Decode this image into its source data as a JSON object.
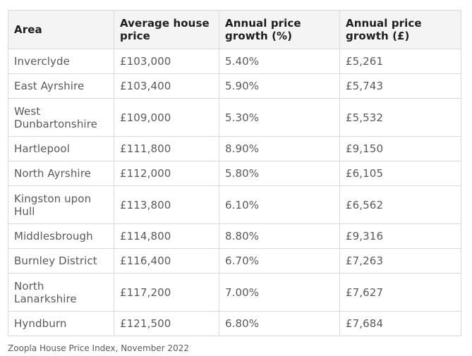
{
  "table": {
    "headers": {
      "area": "Area",
      "avg_price": "Average house price",
      "growth_pct": "Annual price growth (%)",
      "growth_gbp": "Annual price growth (£)"
    },
    "rows": [
      {
        "area": "Inverclyde",
        "avg_price": "£103,000",
        "growth_pct": "5.40%",
        "growth_gbp": "£5,261"
      },
      {
        "area": "East Ayrshire",
        "avg_price": "£103,400",
        "growth_pct": "5.90%",
        "growth_gbp": "£5,743"
      },
      {
        "area": "West Dunbartonshire",
        "avg_price": "£109,000",
        "growth_pct": "5.30%",
        "growth_gbp": "£5,532"
      },
      {
        "area": "Hartlepool",
        "avg_price": "£111,800",
        "growth_pct": "8.90%",
        "growth_gbp": "£9,150"
      },
      {
        "area": "North Ayrshire",
        "avg_price": "£112,000",
        "growth_pct": "5.80%",
        "growth_gbp": "£6,105"
      },
      {
        "area": "Kingston upon Hull",
        "avg_price": "£113,800",
        "growth_pct": "6.10%",
        "growth_gbp": "£6,562"
      },
      {
        "area": "Middlesbrough",
        "avg_price": "£114,800",
        "growth_pct": "8.80%",
        "growth_gbp": "£9,316"
      },
      {
        "area": "Burnley District",
        "avg_price": "£116,400",
        "growth_pct": "6.70%",
        "growth_gbp": "£7,263"
      },
      {
        "area": "North Lanarkshire",
        "avg_price": "£117,200",
        "growth_pct": "7.00%",
        "growth_gbp": "£7,627"
      },
      {
        "area": "Hyndburn",
        "avg_price": "£121,500",
        "growth_pct": "6.80%",
        "growth_gbp": "£7,684"
      }
    ]
  },
  "source": "Zoopla House Price Index, November 2022",
  "colors": {
    "header_bg": "#f4f4f4",
    "border": "#d9d9d9",
    "header_text": "#1e1e1e",
    "cell_text": "#5a5a5a"
  }
}
